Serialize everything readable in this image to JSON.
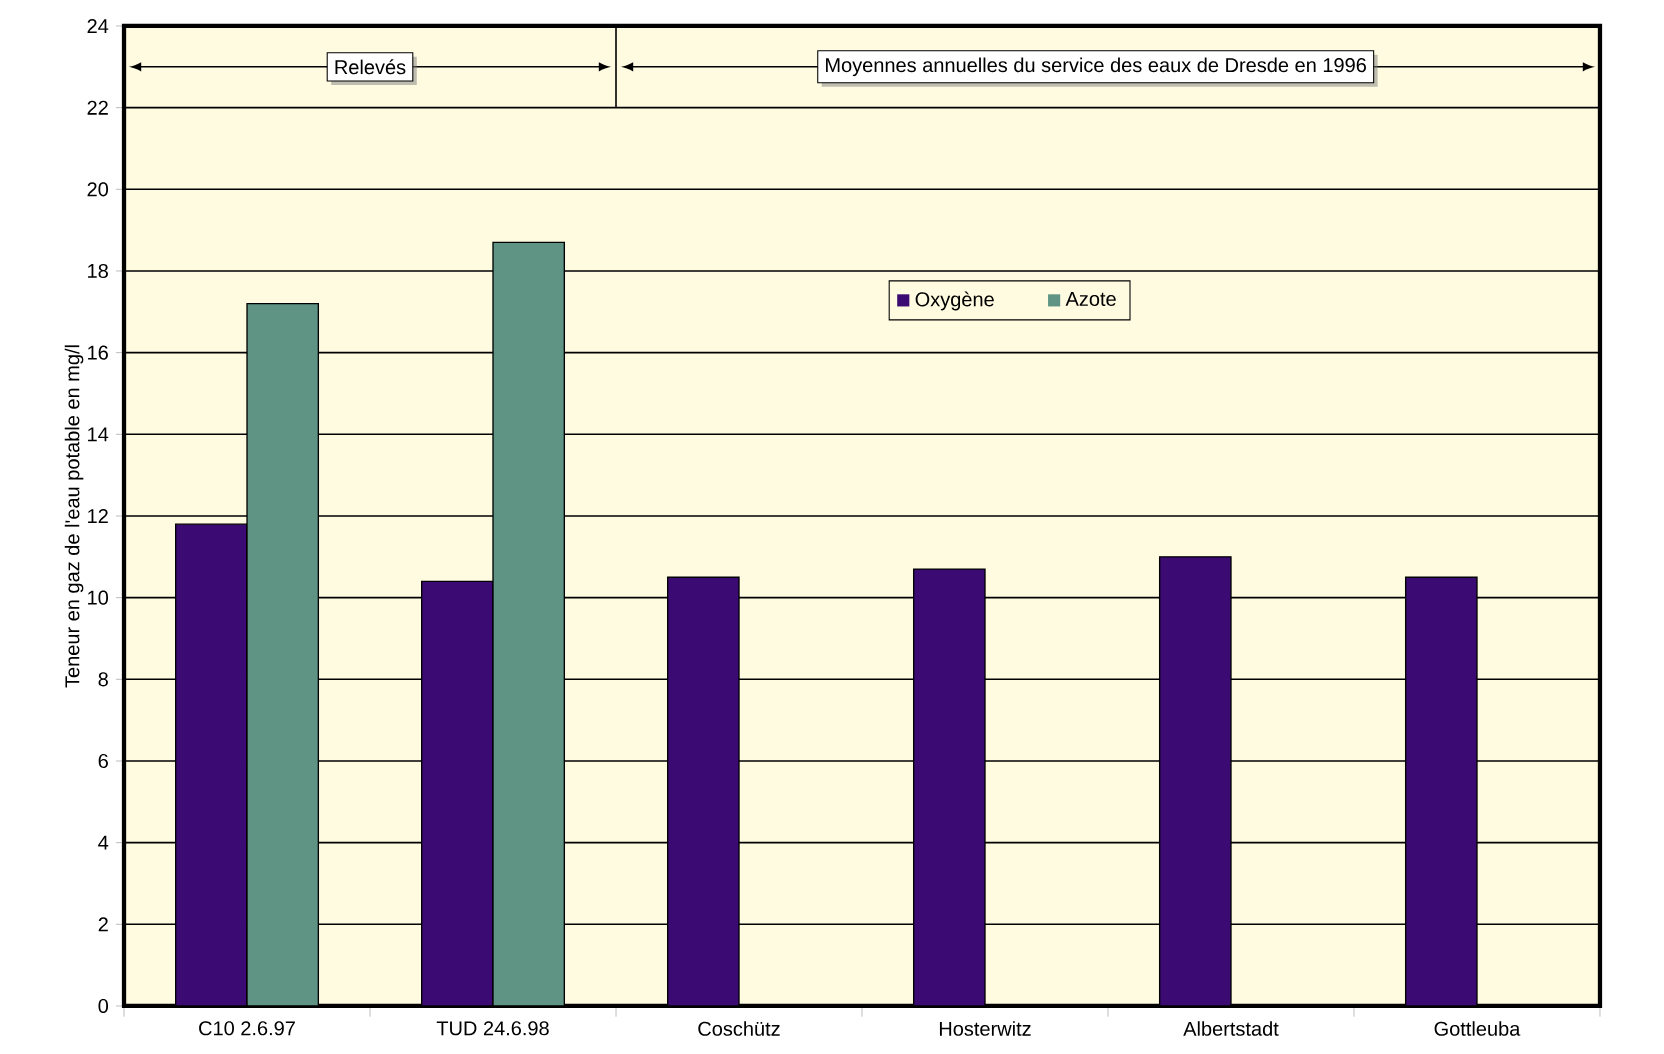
{
  "chart_data": {
    "type": "bar",
    "ylabel": "Teneur en gaz de l'eau potable en mg/l",
    "categories": [
      "C10 2.6.97",
      "TUD 24.6.98",
      "Coschütz",
      "Hosterwitz",
      "Albertstadt",
      "Gottleuba"
    ],
    "series": [
      {
        "name": "Oxygène",
        "color": "#3b0a72",
        "values": [
          11.8,
          10.4,
          10.5,
          10.7,
          11.0,
          10.5
        ]
      },
      {
        "name": "Azote",
        "color": "#5f9484",
        "values": [
          17.2,
          18.7,
          null,
          null,
          null,
          null
        ]
      }
    ],
    "ylim": [
      0,
      24
    ],
    "yticks": [
      0,
      2,
      4,
      6,
      8,
      10,
      12,
      14,
      16,
      18,
      20,
      22,
      24
    ],
    "grid": "y",
    "legend": "top",
    "annotations": [
      "Relevés",
      "Moyennes annuelles du service des eaux de Dresde en 1996"
    ]
  }
}
